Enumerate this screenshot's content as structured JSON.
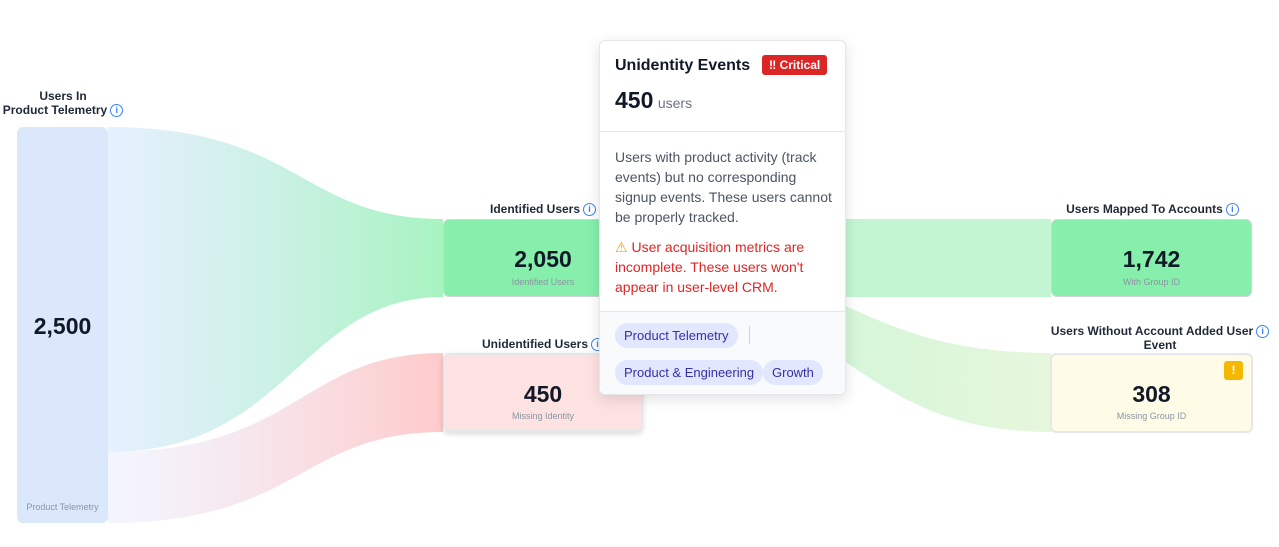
{
  "nodes": [
    {
      "label_lines": [
        "Users In",
        "Product Telemetry"
      ],
      "value": "2,500",
      "sublabel": "Product Telemetry"
    },
    {
      "label_lines": [
        "Identified Users"
      ],
      "value": "2,050",
      "sublabel": "Identified Users"
    },
    {
      "label_lines": [
        "Unidentified Users"
      ],
      "value": "450",
      "sublabel": "Missing Identity"
    },
    {
      "label_lines": [
        "Users Mapped To Accounts"
      ],
      "value": "1,742",
      "sublabel": "With Group ID"
    },
    {
      "label_lines": [
        "Users Without Account Added User",
        "Event"
      ],
      "value": "308",
      "sublabel": "Missing Group ID",
      "badge": "!"
    }
  ],
  "tooltip": {
    "title": "Unidentity Events",
    "badge": "‼ Critical",
    "value": "450",
    "unit": "users",
    "description": "Users with product activity (track events) but no corresponding signup events. These users cannot be properly tracked.",
    "warning": "User acquisition metrics are incomplete. These users won't appear in user-level CRM.",
    "tags": [
      "Product Telemetry",
      "Product & Engineering",
      "Growth"
    ]
  }
}
